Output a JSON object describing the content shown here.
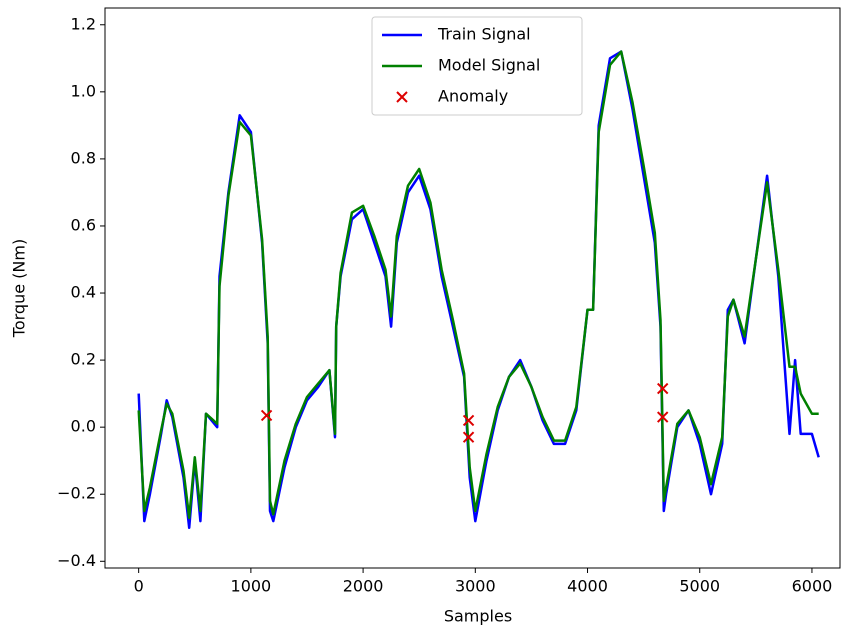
{
  "chart_data": {
    "type": "line",
    "xlabel": "Samples",
    "ylabel": "Torque (Nm)",
    "x": [
      0,
      50,
      100,
      200,
      250,
      300,
      400,
      450,
      500,
      550,
      600,
      700,
      720,
      800,
      900,
      1000,
      1100,
      1150,
      1170,
      1200,
      1300,
      1400,
      1500,
      1600,
      1700,
      1750,
      1760,
      1800,
      1900,
      2000,
      2100,
      2200,
      2250,
      2300,
      2400,
      2500,
      2600,
      2700,
      2800,
      2900,
      2950,
      3000,
      3100,
      3200,
      3300,
      3400,
      3500,
      3600,
      3700,
      3800,
      3900,
      4000,
      4050,
      4100,
      4200,
      4300,
      4400,
      4500,
      4600,
      4650,
      4680,
      4700,
      4800,
      4900,
      5000,
      5100,
      5200,
      5250,
      5300,
      5400,
      5500,
      5600,
      5700,
      5800,
      5850,
      5900,
      6000,
      6060
    ],
    "series": [
      {
        "name": "Train Signal",
        "color": "#0000ff",
        "values": [
          0.1,
          -0.28,
          -0.2,
          -0.02,
          0.08,
          0.03,
          -0.15,
          -0.3,
          -0.1,
          -0.28,
          0.04,
          0.0,
          0.45,
          0.7,
          0.93,
          0.88,
          0.55,
          0.25,
          -0.25,
          -0.28,
          -0.12,
          0.0,
          0.08,
          0.12,
          0.17,
          -0.03,
          0.3,
          0.45,
          0.62,
          0.65,
          0.55,
          0.45,
          0.3,
          0.55,
          0.7,
          0.75,
          0.65,
          0.45,
          0.3,
          0.15,
          -0.15,
          -0.28,
          -0.1,
          0.05,
          0.15,
          0.2,
          0.12,
          0.02,
          -0.05,
          -0.05,
          0.05,
          0.35,
          0.35,
          0.9,
          1.1,
          1.12,
          0.95,
          0.75,
          0.55,
          0.3,
          -0.25,
          -0.2,
          0.0,
          0.05,
          -0.05,
          -0.2,
          -0.05,
          0.35,
          0.38,
          0.25,
          0.5,
          0.75,
          0.45,
          -0.02,
          0.2,
          -0.02,
          -0.02,
          -0.09
        ]
      },
      {
        "name": "Model Signal",
        "color": "#008000",
        "values": [
          0.05,
          -0.25,
          -0.18,
          -0.01,
          0.07,
          0.04,
          -0.13,
          -0.27,
          -0.09,
          -0.25,
          0.04,
          0.01,
          0.42,
          0.69,
          0.91,
          0.87,
          0.56,
          0.27,
          -0.22,
          -0.26,
          -0.1,
          0.01,
          0.09,
          0.13,
          0.17,
          -0.02,
          0.3,
          0.46,
          0.64,
          0.66,
          0.57,
          0.47,
          0.33,
          0.57,
          0.72,
          0.77,
          0.67,
          0.47,
          0.32,
          0.16,
          -0.12,
          -0.25,
          -0.08,
          0.06,
          0.15,
          0.19,
          0.12,
          0.03,
          -0.04,
          -0.04,
          0.06,
          0.35,
          0.35,
          0.88,
          1.08,
          1.12,
          0.97,
          0.78,
          0.58,
          0.32,
          -0.22,
          -0.18,
          0.01,
          0.05,
          -0.03,
          -0.17,
          -0.03,
          0.33,
          0.38,
          0.27,
          0.5,
          0.73,
          0.47,
          0.18,
          0.18,
          0.1,
          0.04,
          0.04
        ]
      }
    ],
    "anomalies": {
      "name": "Anomaly",
      "color": "#dd0000",
      "x": [
        1140,
        2940,
        2940,
        4670,
        4670
      ],
      "y": [
        0.035,
        0.02,
        -0.03,
        0.115,
        0.03
      ]
    },
    "xlim": [
      -300,
      6250
    ],
    "ylim": [
      -0.42,
      1.25
    ],
    "xticks": [
      0,
      1000,
      2000,
      3000,
      4000,
      5000,
      6000
    ],
    "yticks": [
      {
        "value": -0.4,
        "label": "−0.4"
      },
      {
        "value": -0.2,
        "label": "−0.2"
      },
      {
        "value": 0,
        "label": "0.0"
      },
      {
        "value": 0.2,
        "label": "0.2"
      },
      {
        "value": 0.4,
        "label": "0.4"
      },
      {
        "value": 0.6,
        "label": "0.6"
      },
      {
        "value": 0.8,
        "label": "0.8"
      },
      {
        "value": 1,
        "label": "1.0"
      },
      {
        "value": 1.2,
        "label": "1.2"
      }
    ],
    "legend": "upper center"
  }
}
